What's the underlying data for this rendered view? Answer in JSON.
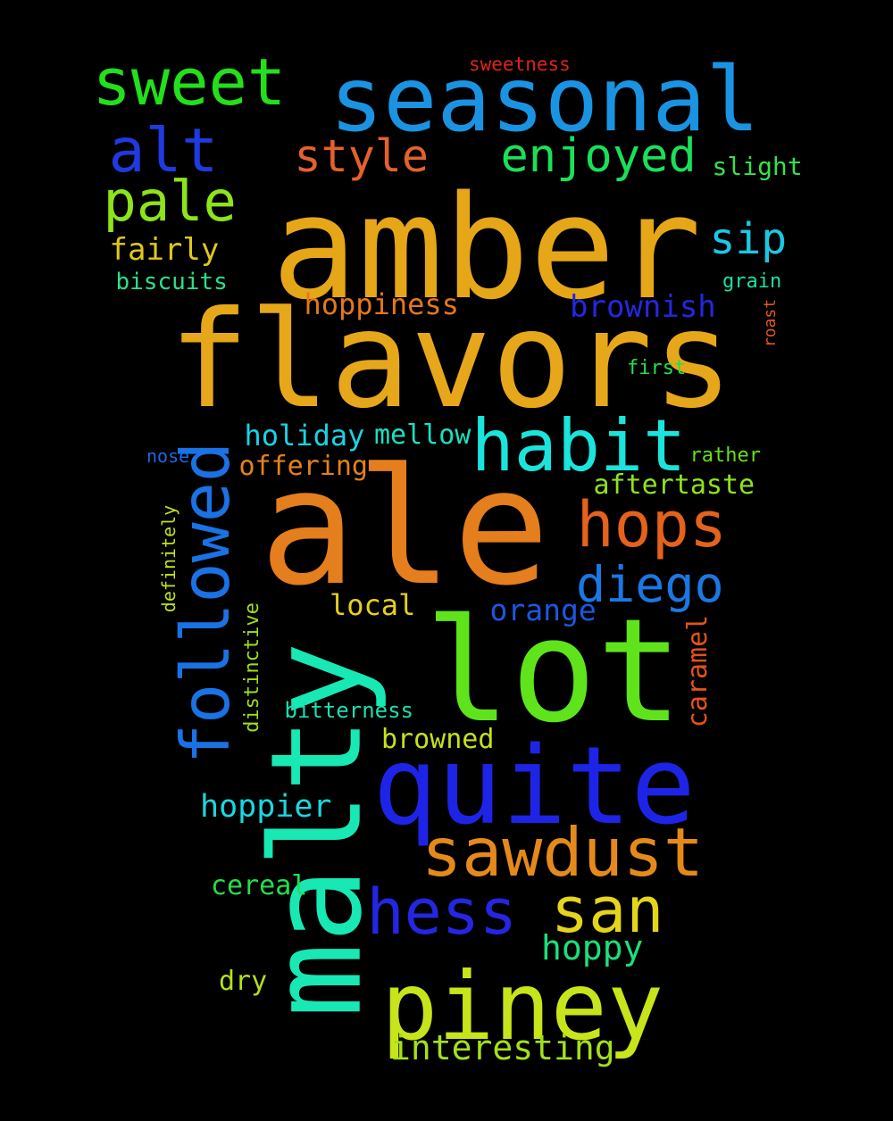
{
  "background": "#000000",
  "words": [
    {
      "text": "amber",
      "color": "#e5a718",
      "orientation": "horizontal"
    },
    {
      "text": "flavors",
      "color": "#e6a81a",
      "orientation": "horizontal"
    },
    {
      "text": "ale",
      "color": "#e57e1c",
      "orientation": "horizontal"
    },
    {
      "text": "lot",
      "color": "#5fe41c",
      "orientation": "horizontal"
    },
    {
      "text": "malty",
      "color": "#18e8b4",
      "orientation": "vertical"
    },
    {
      "text": "quite",
      "color": "#1e24e6",
      "orientation": "horizontal"
    },
    {
      "text": "seasonal",
      "color": "#1a94e2",
      "orientation": "horizontal"
    },
    {
      "text": "piney",
      "color": "#c8e41a",
      "orientation": "horizontal"
    },
    {
      "text": "habit",
      "color": "#1ae4dc",
      "orientation": "horizontal"
    },
    {
      "text": "followed",
      "color": "#1a72e4",
      "orientation": "vertical"
    },
    {
      "text": "sawdust",
      "color": "#e58a1a",
      "orientation": "horizontal"
    },
    {
      "text": "sweet",
      "color": "#22e01a",
      "orientation": "horizontal"
    },
    {
      "text": "hess",
      "color": "#2426e4",
      "orientation": "horizontal"
    },
    {
      "text": "san",
      "color": "#e4d51a",
      "orientation": "horizontal"
    },
    {
      "text": "hops",
      "color": "#e5621a",
      "orientation": "horizontal"
    },
    {
      "text": "alt",
      "color": "#1e3ae0",
      "orientation": "horizontal"
    },
    {
      "text": "pale",
      "color": "#8ce41a",
      "orientation": "horizontal"
    },
    {
      "text": "diego",
      "color": "#1a78e4",
      "orientation": "horizontal"
    },
    {
      "text": "enjoyed",
      "color": "#1ae058",
      "orientation": "horizontal"
    },
    {
      "text": "style",
      "color": "#e4622a",
      "orientation": "horizontal"
    },
    {
      "text": "sip",
      "color": "#1ac8e4",
      "orientation": "horizontal"
    },
    {
      "text": "hoppy",
      "color": "#1ae07c",
      "orientation": "horizontal"
    },
    {
      "text": "interesting",
      "color": "#a4e01a",
      "orientation": "horizontal"
    },
    {
      "text": "hoppier",
      "color": "#1ad8e0",
      "orientation": "horizontal"
    },
    {
      "text": "holiday",
      "color": "#1ad2e4",
      "orientation": "horizontal"
    },
    {
      "text": "hoppiness",
      "color": "#e4781a",
      "orientation": "horizontal"
    },
    {
      "text": "brownish",
      "color": "#2428e0",
      "orientation": "horizontal"
    },
    {
      "text": "fairly",
      "color": "#e0c81a",
      "orientation": "horizontal"
    },
    {
      "text": "aftertaste",
      "color": "#8ee41a",
      "orientation": "horizontal"
    },
    {
      "text": "orange",
      "color": "#1a58e4",
      "orientation": "horizontal"
    },
    {
      "text": "offering",
      "color": "#e4821a",
      "orientation": "horizontal"
    },
    {
      "text": "local",
      "color": "#e4d01a",
      "orientation": "horizontal"
    },
    {
      "text": "mellow",
      "color": "#1ae0c0",
      "orientation": "horizontal"
    },
    {
      "text": "cereal",
      "color": "#22e04e",
      "orientation": "horizontal"
    },
    {
      "text": "browned",
      "color": "#c8e01a",
      "orientation": "horizontal"
    },
    {
      "text": "slight",
      "color": "#38e04a",
      "orientation": "horizontal"
    },
    {
      "text": "dry",
      "color": "#b4e01a",
      "orientation": "horizontal"
    },
    {
      "text": "caramel",
      "color": "#e4521a",
      "orientation": "vertical"
    },
    {
      "text": "biscuits",
      "color": "#2ae08a",
      "orientation": "horizontal"
    },
    {
      "text": "bitterness",
      "color": "#1ae0b0",
      "orientation": "horizontal"
    },
    {
      "text": "distinctive",
      "color": "#9ee01a",
      "orientation": "vertical"
    },
    {
      "text": "definitely",
      "color": "#c2e01a",
      "orientation": "vertical"
    },
    {
      "text": "rather",
      "color": "#64e01a",
      "orientation": "horizontal"
    },
    {
      "text": "grain",
      "color": "#1ae0a4",
      "orientation": "horizontal"
    },
    {
      "text": "first",
      "color": "#22e04a",
      "orientation": "horizontal"
    },
    {
      "text": "nose",
      "color": "#1a68e4",
      "orientation": "horizontal"
    },
    {
      "text": "sweetness",
      "color": "#e0221a",
      "orientation": "horizontal"
    },
    {
      "text": "roast",
      "color": "#e4561a",
      "orientation": "vertical"
    }
  ]
}
